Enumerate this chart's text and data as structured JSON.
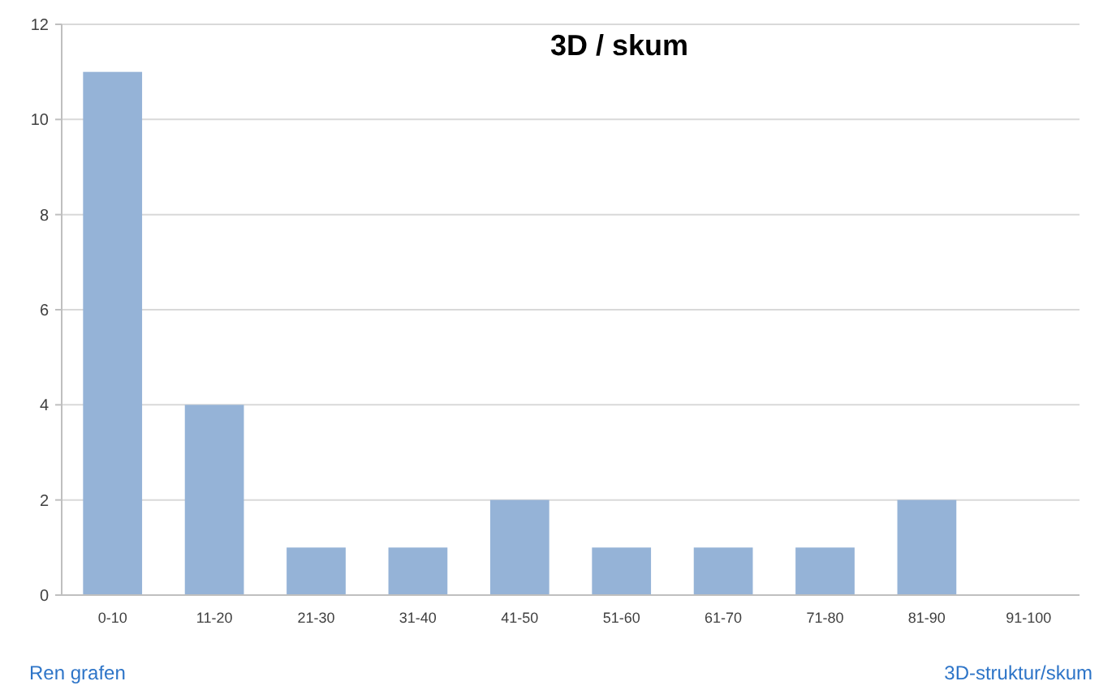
{
  "chart_data": {
    "type": "bar",
    "title": "3D / skum",
    "categories": [
      "0-10",
      "11-20",
      "21-30",
      "31-40",
      "41-50",
      "51-60",
      "61-70",
      "71-80",
      "81-90",
      "91-100"
    ],
    "values": [
      11,
      4,
      1,
      1,
      2,
      1,
      1,
      1,
      2,
      0
    ],
    "color": "#95b3d7",
    "ylim": [
      0,
      12
    ],
    "yticks": [
      0,
      2,
      4,
      6,
      8,
      10,
      12
    ],
    "grid": "y",
    "annotations": [
      "Ren grafen",
      "3D-struktur/skum"
    ]
  }
}
